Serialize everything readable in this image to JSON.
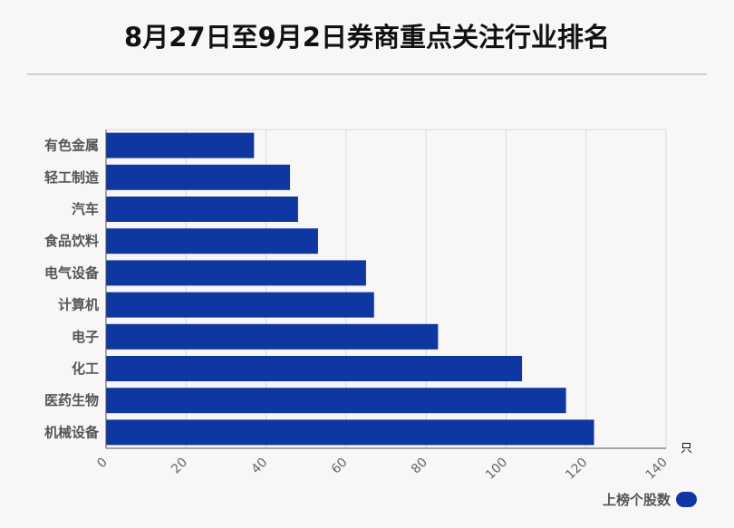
{
  "title": "8月27日至9月2日券商重点关注行业排名",
  "chart_data": {
    "type": "bar",
    "orientation": "horizontal",
    "categories": [
      "有色金属",
      "轻工制造",
      "汽车",
      "食品饮料",
      "电气设备",
      "计算机",
      "电子",
      "化工",
      "医药生物",
      "机械设备"
    ],
    "series": [
      {
        "name": "上榜个股数",
        "values": [
          37,
          46,
          48,
          53,
          65,
          67,
          83,
          104,
          115,
          122
        ]
      }
    ],
    "xlim": [
      0,
      140
    ],
    "xticks": [
      0,
      20,
      40,
      60,
      80,
      100,
      120,
      140
    ],
    "unit": "只",
    "bar_color": "#0e37a1",
    "grid": true,
    "legend_position": "bottom-right"
  }
}
